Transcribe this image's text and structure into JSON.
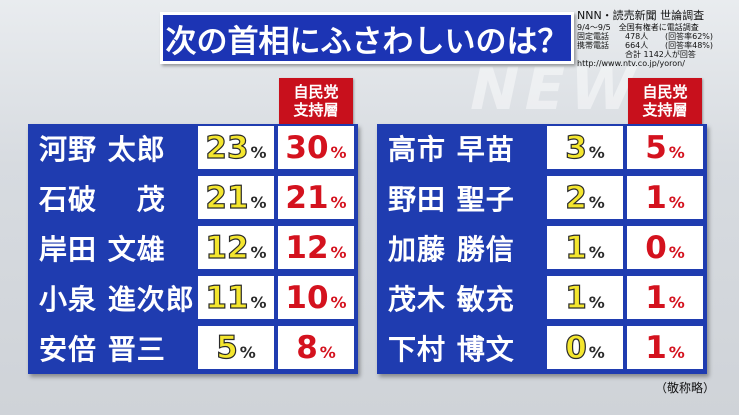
{
  "title": "次の首相にふさわしいのは？",
  "watermark": "NEW",
  "source": {
    "line1": "NNN・読売新聞 世論調査",
    "line2": "9/4～9/5　全国有権者に電話調査",
    "landline_label": "固定電話",
    "landline_value": "478人",
    "landline_rate": "(回答率62%)",
    "mobile_label": "携帯電話",
    "mobile_value": "664人",
    "mobile_rate": "(回答率48%)",
    "total": "合計 1142人が回答",
    "url": "http://www.ntv.co.jp/yoron/"
  },
  "header_label_line1": "自民党",
  "header_label_line2": "支持層",
  "unit": "%",
  "left": [
    {
      "name": "河野 太郎",
      "overall": "23",
      "ldp": "30"
    },
    {
      "name": "石破　 茂",
      "overall": "21",
      "ldp": "21"
    },
    {
      "name": "岸田 文雄",
      "overall": "12",
      "ldp": "12"
    },
    {
      "name": "小泉 進次郎",
      "overall": "11",
      "ldp": "10"
    },
    {
      "name": "安倍 晋三",
      "overall": "5",
      "ldp": "8"
    }
  ],
  "right": [
    {
      "name": "高市 早苗",
      "overall": "3",
      "ldp": "5"
    },
    {
      "name": "野田 聖子",
      "overall": "2",
      "ldp": "1"
    },
    {
      "name": "加藤 勝信",
      "overall": "1",
      "ldp": "0"
    },
    {
      "name": "茂木 敏充",
      "overall": "1",
      "ldp": "1"
    },
    {
      "name": "下村 博文",
      "overall": "0",
      "ldp": "1"
    }
  ],
  "note": "（敬称略）"
}
